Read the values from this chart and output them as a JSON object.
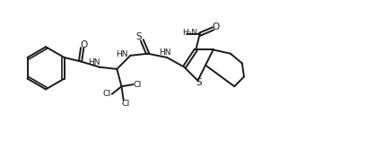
{
  "background_color": "#ffffff",
  "line_color": "#1a1a1a",
  "line_width": 1.4,
  "figsize": [
    4.37,
    1.86
  ],
  "dpi": 100,
  "xlim": [
    0,
    100
  ],
  "ylim": [
    0,
    43
  ]
}
